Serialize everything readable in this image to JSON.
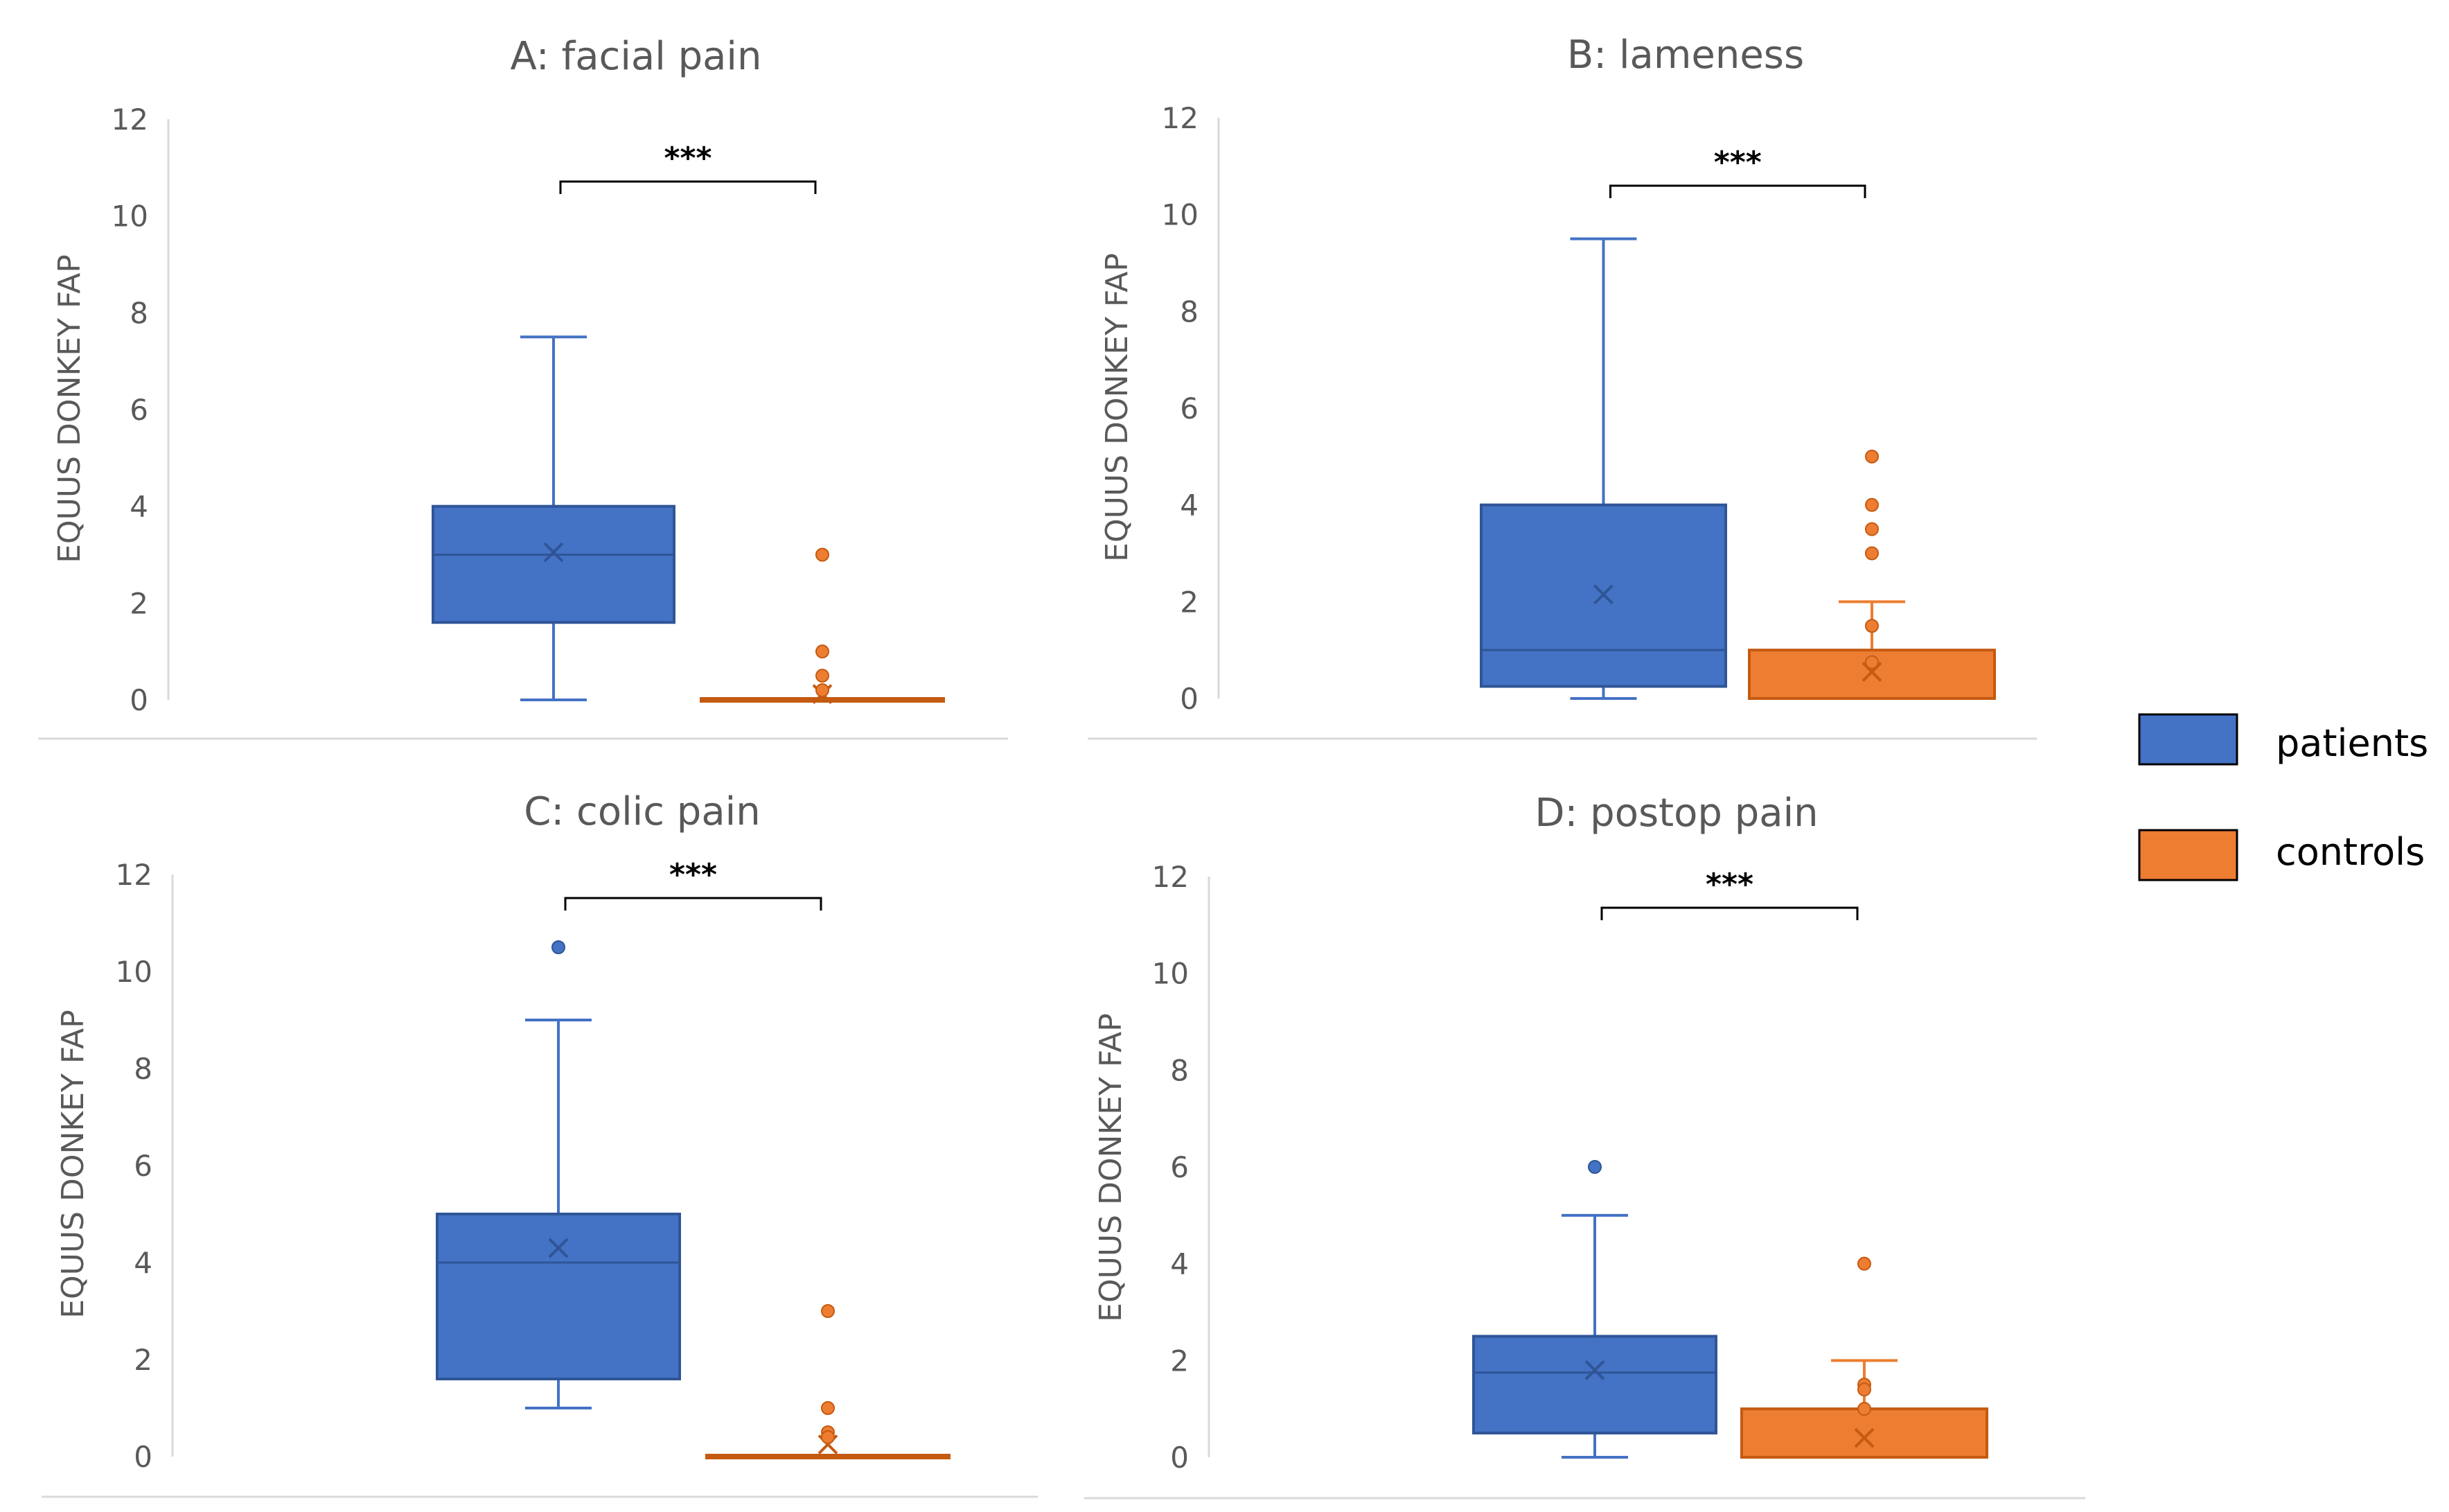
{
  "chart_data": [
    {
      "type": "box",
      "title": "A: facial pain",
      "ylabel": "EQUUS DONKEY FAP",
      "ylim": [
        0,
        12
      ],
      "yticks": [
        "0",
        "2",
        "4",
        "6",
        "8",
        "10",
        "12"
      ],
      "significance": "***",
      "series": [
        {
          "name": "patients",
          "min": 0,
          "q1": 1.6,
          "median": 3,
          "q3": 4,
          "max": 7.5,
          "mean": 3.05,
          "outliers": []
        },
        {
          "name": "controls",
          "min": 0,
          "q1": 0,
          "median": 0,
          "q3": 0,
          "max": 0,
          "mean": 0.12,
          "outliers": [
            3,
            1,
            0.5,
            0.2
          ]
        }
      ]
    },
    {
      "type": "box",
      "title": "B: lameness",
      "ylabel": "EQUUS DONKEY FAP",
      "ylim": [
        0,
        12
      ],
      "yticks": [
        "0",
        "2",
        "4",
        "6",
        "8",
        "10",
        "12"
      ],
      "significance": "***",
      "series": [
        {
          "name": "patients",
          "min": 0,
          "q1": 0.25,
          "median": 1,
          "q3": 4,
          "max": 9.5,
          "mean": 2.15,
          "outliers": []
        },
        {
          "name": "controls",
          "min": 0,
          "q1": 0,
          "median": 1,
          "q3": 1,
          "max": 2,
          "mean": 0.55,
          "outliers": [
            5,
            4,
            3.5,
            3,
            1.5,
            0.75
          ]
        }
      ]
    },
    {
      "type": "box",
      "title": "C: colic pain",
      "ylabel": "EQUUS DONKEY FAP",
      "ylim": [
        0,
        12
      ],
      "yticks": [
        "0",
        "2",
        "4",
        "6",
        "8",
        "10",
        "12"
      ],
      "significance": "***",
      "series": [
        {
          "name": "patients",
          "min": 1,
          "q1": 1.6,
          "median": 4,
          "q3": 5,
          "max": 9,
          "mean": 4.3,
          "outliers": [
            10.5
          ]
        },
        {
          "name": "controls",
          "min": 0,
          "q1": 0,
          "median": 0,
          "q3": 0,
          "max": 0,
          "mean": 0.25,
          "outliers": [
            3,
            1,
            0.5,
            0.4
          ]
        }
      ]
    },
    {
      "type": "box",
      "title": "D: postop pain",
      "ylabel": "EQUUS DONKEY FAP",
      "ylim": [
        0,
        12
      ],
      "yticks": [
        "0",
        "2",
        "4",
        "6",
        "8",
        "10",
        "12"
      ],
      "significance": "***",
      "series": [
        {
          "name": "patients",
          "min": 0,
          "q1": 0.5,
          "median": 1.75,
          "q3": 2.5,
          "max": 5,
          "mean": 1.8,
          "outliers": [
            6
          ]
        },
        {
          "name": "controls",
          "min": 0,
          "q1": 0,
          "median": 1,
          "q3": 1,
          "max": 2,
          "mean": 0.4,
          "outliers": [
            4,
            1.5,
            1.4,
            1
          ]
        }
      ]
    }
  ],
  "legend": {
    "items": [
      {
        "label": "patients",
        "color": "#4472C4"
      },
      {
        "label": "controls",
        "color": "#ED7D31"
      }
    ]
  },
  "colors": {
    "patients_fill": "#4472C4",
    "patients_edge": "#2F5597",
    "controls_fill": "#ED7D31",
    "controls_edge": "#C55A11",
    "axis": "#D9D9D9",
    "text": "#595959"
  }
}
